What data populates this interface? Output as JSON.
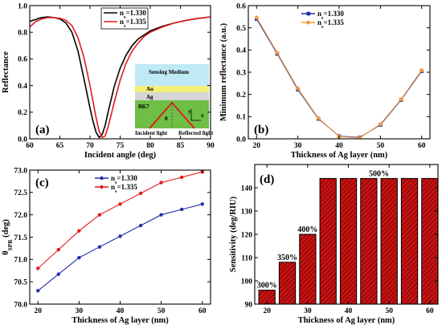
{
  "chart_data": [
    {
      "panel": "(a)",
      "type": "line",
      "xlabel": "Incident angle (deg)",
      "ylabel": "Reflectance",
      "xlim": [
        60,
        90
      ],
      "ylim": [
        0.0,
        1.0
      ],
      "xticks": [
        60,
        65,
        70,
        75,
        80,
        85,
        90
      ],
      "yticks": [
        0.0,
        0.2,
        0.4,
        0.6,
        0.8,
        1.0
      ],
      "ytick_labels": [
        "0.0",
        "0.2",
        "0.4",
        "0.6",
        "0.8",
        "1.0"
      ],
      "legend_position": "top-right",
      "series": [
        {
          "name_main": "n",
          "name_sub": "s",
          "name_rest": "=1.330",
          "color": "#000000",
          "x": [
            60,
            60.5,
            61,
            61.5,
            62,
            63,
            64,
            65,
            66,
            67,
            68,
            69,
            70,
            70.5,
            71,
            71.5,
            72,
            72.5,
            73,
            74,
            75,
            76,
            77,
            78,
            79,
            80,
            82,
            84,
            86,
            88,
            90
          ],
          "y": [
            0.88,
            0.89,
            0.895,
            0.905,
            0.91,
            0.915,
            0.91,
            0.9,
            0.87,
            0.8,
            0.66,
            0.45,
            0.23,
            0.13,
            0.05,
            0.01,
            0.03,
            0.1,
            0.2,
            0.39,
            0.53,
            0.63,
            0.7,
            0.75,
            0.78,
            0.81,
            0.845,
            0.87,
            0.89,
            0.905,
            0.915
          ]
        },
        {
          "name_main": "n",
          "name_sub": "s",
          "name_rest": "=1.335",
          "color": "#e31a1c",
          "x": [
            60,
            60.5,
            61,
            62,
            63,
            64,
            65,
            66,
            67,
            68,
            69,
            70,
            71,
            71.5,
            72,
            72.5,
            73,
            73.5,
            74,
            75,
            76,
            77,
            78,
            79,
            80,
            82,
            84,
            86,
            88,
            90
          ],
          "y": [
            0.84,
            0.86,
            0.88,
            0.9,
            0.91,
            0.91,
            0.905,
            0.89,
            0.85,
            0.76,
            0.61,
            0.4,
            0.16,
            0.06,
            0.01,
            0.02,
            0.09,
            0.18,
            0.27,
            0.44,
            0.57,
            0.66,
            0.72,
            0.77,
            0.8,
            0.84,
            0.87,
            0.89,
            0.905,
            0.915
          ]
        }
      ],
      "inset": {
        "sensing_medium": "Sensing Medium",
        "au": "Au",
        "ag": "Ag",
        "bk7": "BK7",
        "theta": "θ",
        "incident": "Incident light",
        "reflected": "Reflected light",
        "axis_y": "y",
        "axis_x": "x"
      }
    },
    {
      "panel": "(b)",
      "type": "line",
      "xlabel": "Thickness of Ag layer (nm)",
      "ylabel": "Minimum reflectance (a.u.)",
      "xlim": [
        18,
        62
      ],
      "ylim": [
        0.0,
        0.6
      ],
      "xticks": [
        20,
        30,
        40,
        50,
        60
      ],
      "yticks": [
        0.0,
        0.1,
        0.2,
        0.3,
        0.4,
        0.5,
        0.6
      ],
      "ytick_labels": [
        "0.0",
        "0.1",
        "0.2",
        "0.3",
        "0.4",
        "0.5",
        "0.6"
      ],
      "legend_position": "top-right",
      "series": [
        {
          "name_main": "n",
          "name_sub": "s",
          "name_rest": "=1.330",
          "color": "#1f2fa8",
          "x": [
            20,
            25,
            30,
            35,
            40,
            45,
            50,
            55,
            60
          ],
          "y": [
            0.54,
            0.383,
            0.222,
            0.09,
            0.012,
            0.006,
            0.063,
            0.175,
            0.305
          ]
        },
        {
          "name_main": "n",
          "name_sub": "s",
          "name_rest": "=1.335",
          "color": "#f59a3b",
          "x": [
            20,
            25,
            30,
            35,
            40,
            45,
            50,
            55,
            60
          ],
          "y": [
            0.546,
            0.388,
            0.227,
            0.093,
            0.01,
            0.004,
            0.066,
            0.178,
            0.309
          ]
        }
      ]
    },
    {
      "panel": "(c)",
      "type": "line",
      "xlabel": "Thickness of Ag layer (nm)",
      "ylabel_main": "θ",
      "ylabel_sub": "SPR",
      "ylabel_rest": " (deg)",
      "xlim": [
        18,
        62
      ],
      "ylim": [
        70.0,
        73.0
      ],
      "xticks": [
        20,
        30,
        40,
        50,
        60
      ],
      "yticks": [
        70.0,
        70.5,
        71.0,
        71.5,
        72.0,
        72.5,
        73.0
      ],
      "ytick_labels": [
        "70.0",
        "70.5",
        "71.0",
        "71.5",
        "72.0",
        "72.5",
        "73.0"
      ],
      "legend_position": "top-left",
      "series": [
        {
          "name_main": "n",
          "name_sub": "s",
          "name_rest": "=1.330",
          "color": "#1f2fa8",
          "x": [
            20,
            25,
            30,
            35,
            40,
            45,
            50,
            55,
            60
          ],
          "y": [
            70.3,
            70.67,
            71.04,
            71.28,
            71.52,
            71.76,
            72.0,
            72.12,
            72.24
          ]
        },
        {
          "name_main": "n",
          "name_sub": "s",
          "name_rest": "=1.335",
          "color": "#e31a1c",
          "x": [
            20,
            25,
            30,
            35,
            40,
            45,
            50,
            55,
            60
          ],
          "y": [
            70.8,
            71.22,
            71.64,
            72.0,
            72.24,
            72.48,
            72.72,
            72.84,
            72.96
          ]
        }
      ]
    },
    {
      "panel": "(d)",
      "type": "bar",
      "xlabel": "Thickness of Ag layer (nm)",
      "ylabel": "Sensitivity (deg/RIU)",
      "xlim": [
        17,
        62
      ],
      "ylim": [
        90,
        150
      ],
      "xticks": [
        20,
        30,
        40,
        50,
        60
      ],
      "yticks": [
        90,
        100,
        110,
        120,
        130,
        140
      ],
      "ytick_labels": [
        "90",
        "100",
        "110",
        "120",
        "130",
        "140"
      ],
      "bar_color": "#cc1111",
      "bar_width": 4,
      "x": [
        20,
        25,
        30,
        35,
        40,
        45,
        50,
        55,
        60
      ],
      "values": [
        96,
        108,
        120,
        144,
        144,
        144,
        144,
        144,
        144
      ],
      "annotations": [
        {
          "text": "300%",
          "x": 20,
          "y": 96
        },
        {
          "text": "350%",
          "x": 25,
          "y": 108
        },
        {
          "text": "400%",
          "x": 30,
          "y": 120
        },
        {
          "text": "500%",
          "x": 47.5,
          "y": 144
        }
      ]
    }
  ]
}
